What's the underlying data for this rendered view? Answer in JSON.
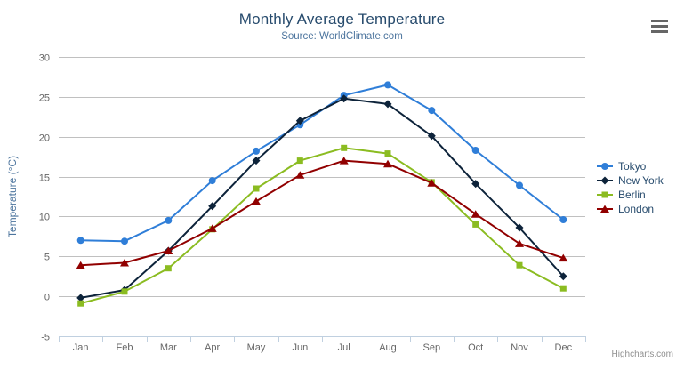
{
  "chart_data": {
    "type": "line",
    "title": "Monthly Average Temperature",
    "subtitle": "Source: WorldClimate.com",
    "categories": [
      "Jan",
      "Feb",
      "Mar",
      "Apr",
      "May",
      "Jun",
      "Jul",
      "Aug",
      "Sep",
      "Oct",
      "Nov",
      "Dec"
    ],
    "xlabel": "",
    "ylabel": "Temperature (°C)",
    "ylim": [
      -5,
      30
    ],
    "ytick_step": 5,
    "grid": true,
    "legend_position": "right",
    "series": [
      {
        "name": "Tokyo",
        "color": "#2f7ed8",
        "marker": "circle",
        "values": [
          7.0,
          6.9,
          9.5,
          14.5,
          18.2,
          21.5,
          25.2,
          26.5,
          23.3,
          18.3,
          13.9,
          9.6
        ]
      },
      {
        "name": "New York",
        "color": "#0d233a",
        "marker": "diamond",
        "values": [
          -0.2,
          0.8,
          5.7,
          11.3,
          17.0,
          22.0,
          24.8,
          24.1,
          20.1,
          14.1,
          8.6,
          2.5
        ]
      },
      {
        "name": "Berlin",
        "color": "#8bbc21",
        "marker": "square",
        "values": [
          -0.9,
          0.6,
          3.5,
          8.4,
          13.5,
          17.0,
          18.6,
          17.9,
          14.3,
          9.0,
          3.9,
          1.0
        ]
      },
      {
        "name": "London",
        "color": "#910000",
        "marker": "triangle",
        "values": [
          3.9,
          4.2,
          5.7,
          8.5,
          11.9,
          15.2,
          17.0,
          16.6,
          14.2,
          10.3,
          6.6,
          4.8
        ]
      }
    ]
  },
  "credit": "Highcharts.com",
  "icons": {
    "context_menu": "hamburger-icon"
  },
  "palette": {
    "title_color": "#274b6d",
    "subtitle_color": "#4d759e",
    "axis_label_color": "#666666",
    "axis_title_color": "#4d759e",
    "grid_color": "#c0c0c0",
    "axis_line_color": "#c0d0e0",
    "legend_text_color": "#274b6d",
    "credit_color": "#909090",
    "menu_icon_color": "#666666"
  }
}
